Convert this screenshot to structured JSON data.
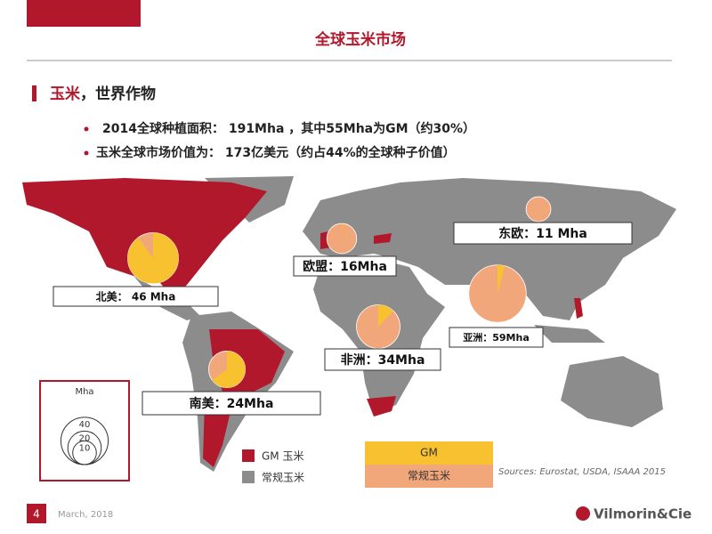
{
  "header": {
    "title": "全球玉米市场"
  },
  "section": {
    "title_highlight": "玉米",
    "title_rest": "，世界作物"
  },
  "bullets": [
    "2014全球种植面积： 191Mha ，其中55Mha为GM（约30%）",
    "玉米全球市场价值为： 173亿美元（约占44%的全球种子价值）"
  ],
  "chart_data": {
    "type": "map-pies",
    "regions": [
      {
        "label": "北美： 46 Mha",
        "mha": 46,
        "gm_share": 90
      },
      {
        "label": "南美：24Mha",
        "mha": 24,
        "gm_share": 65
      },
      {
        "label": "非洲：34Mha",
        "mha": 34,
        "gm_share": 12
      },
      {
        "label": "亚洲：59Mha",
        "mha": 59,
        "gm_share": 4
      },
      {
        "label": "欧盟：16Mha",
        "mha": 16,
        "gm_share": 1
      },
      {
        "label": "东欧：11 Mha",
        "mha": 11,
        "gm_share": 0
      }
    ],
    "size_legend": {
      "title": "Mha",
      "sizes": [
        40,
        20,
        10
      ]
    },
    "map_legend": [
      {
        "name": "GM 玉米",
        "color": "#b2182b"
      },
      {
        "name": "常规玉米",
        "color": "#8c8c8c"
      }
    ],
    "pie_legend": [
      {
        "name": "GM",
        "color": "#f7c12f"
      },
      {
        "name": "常规玉米",
        "color": "#f2a77a"
      }
    ],
    "source": "Sources: Eurostat, USDA, ISAAA 2015"
  },
  "footer": {
    "page": "4",
    "date": "March, 2018",
    "logo": "Vilmorin&Cie"
  }
}
